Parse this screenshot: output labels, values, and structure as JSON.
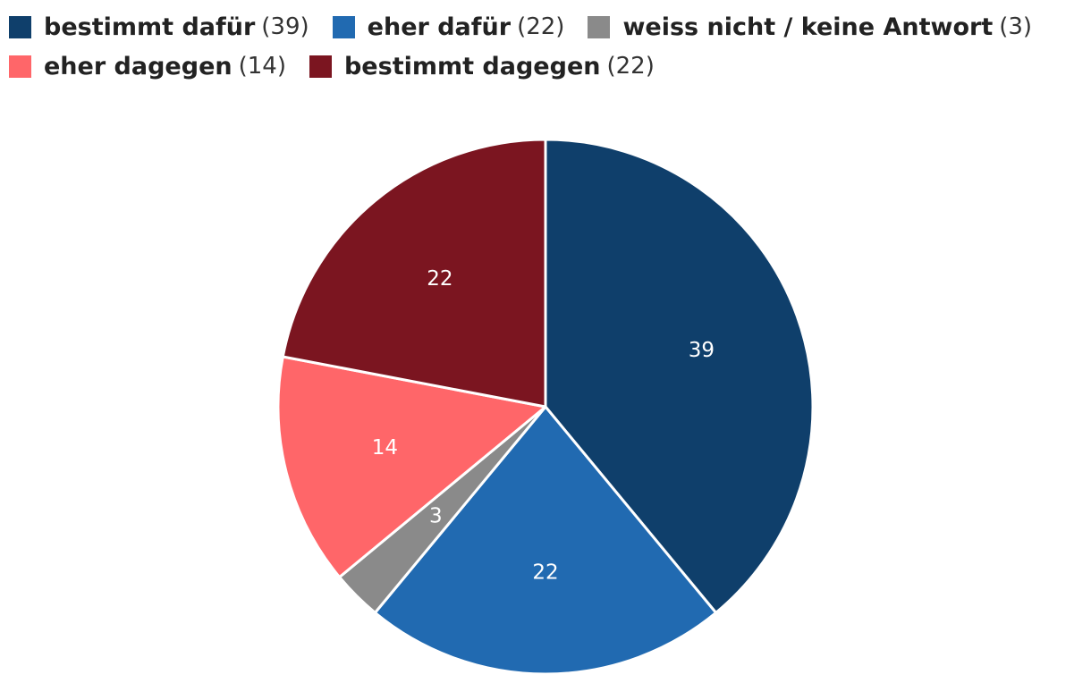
{
  "chart_data": {
    "type": "pie",
    "categories": [
      "bestimmt dafür",
      "eher dafür",
      "weiss nicht / keine Antwort",
      "eher dagegen",
      "bestimmt dagegen"
    ],
    "values": [
      39,
      22,
      3,
      14,
      22
    ],
    "legend_counts": [
      "(39)",
      "(22)",
      "(3)",
      "(14)",
      "(22)"
    ],
    "data_labels": [
      "39",
      "22",
      "3",
      "14",
      "22"
    ],
    "colors": [
      "#0f3f6b",
      "#216ab1",
      "#8a8a8a",
      "#ff6669",
      "#7b1520"
    ],
    "legend_placement": "top-left"
  }
}
